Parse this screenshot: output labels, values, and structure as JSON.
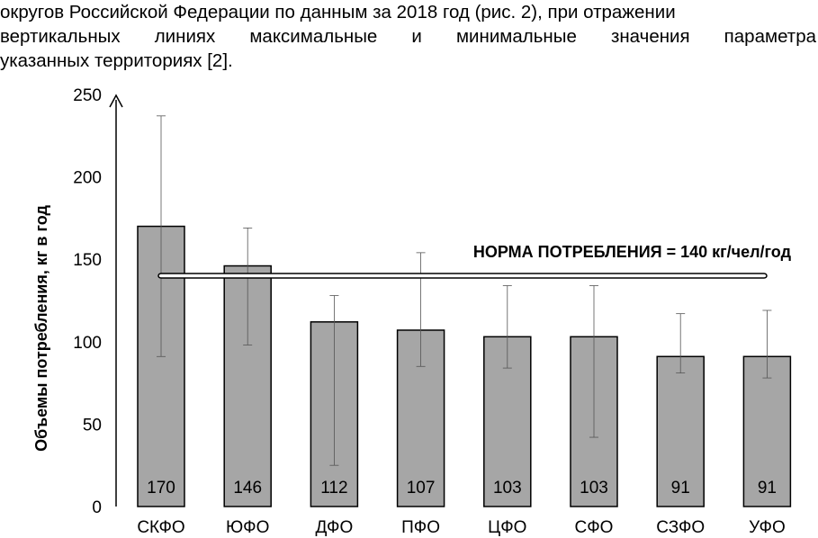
{
  "text": {
    "line1": "округов Российской Федерации по данным за 2018 год (рис. 2), при отражении",
    "line2": "вертикальных линиях максимальные и минимальные значения параметра",
    "line3": "указанных территориях [2]."
  },
  "chart_data": {
    "type": "bar",
    "categories": [
      "СКФО",
      "ЮФО",
      "ДФО",
      "ПФО",
      "ЦФО",
      "СФО",
      "СЗФО",
      "УФО"
    ],
    "values": [
      170,
      146,
      112,
      107,
      103,
      103,
      91,
      91
    ],
    "value_labels": [
      "170",
      "146",
      "112",
      "107",
      "103",
      "103",
      "91",
      "91"
    ],
    "error_max": [
      237,
      169,
      128,
      154,
      134,
      134,
      117,
      119
    ],
    "error_min": [
      91,
      98,
      25,
      85,
      84,
      42,
      81,
      78
    ],
    "ylabel": "Объемы потребления, кг в год",
    "ylim": [
      0,
      250
    ],
    "yticks": [
      0,
      50,
      100,
      150,
      200,
      250
    ],
    "ytick_labels": [
      "0",
      "50",
      "100",
      "150",
      "200",
      "250"
    ],
    "reference_line": {
      "value": 140,
      "label": "НОРМА ПОТРЕБЛЕНИЯ = 140 кг/чел/год"
    },
    "bar_color": "#a6a6a6",
    "grid": false
  }
}
